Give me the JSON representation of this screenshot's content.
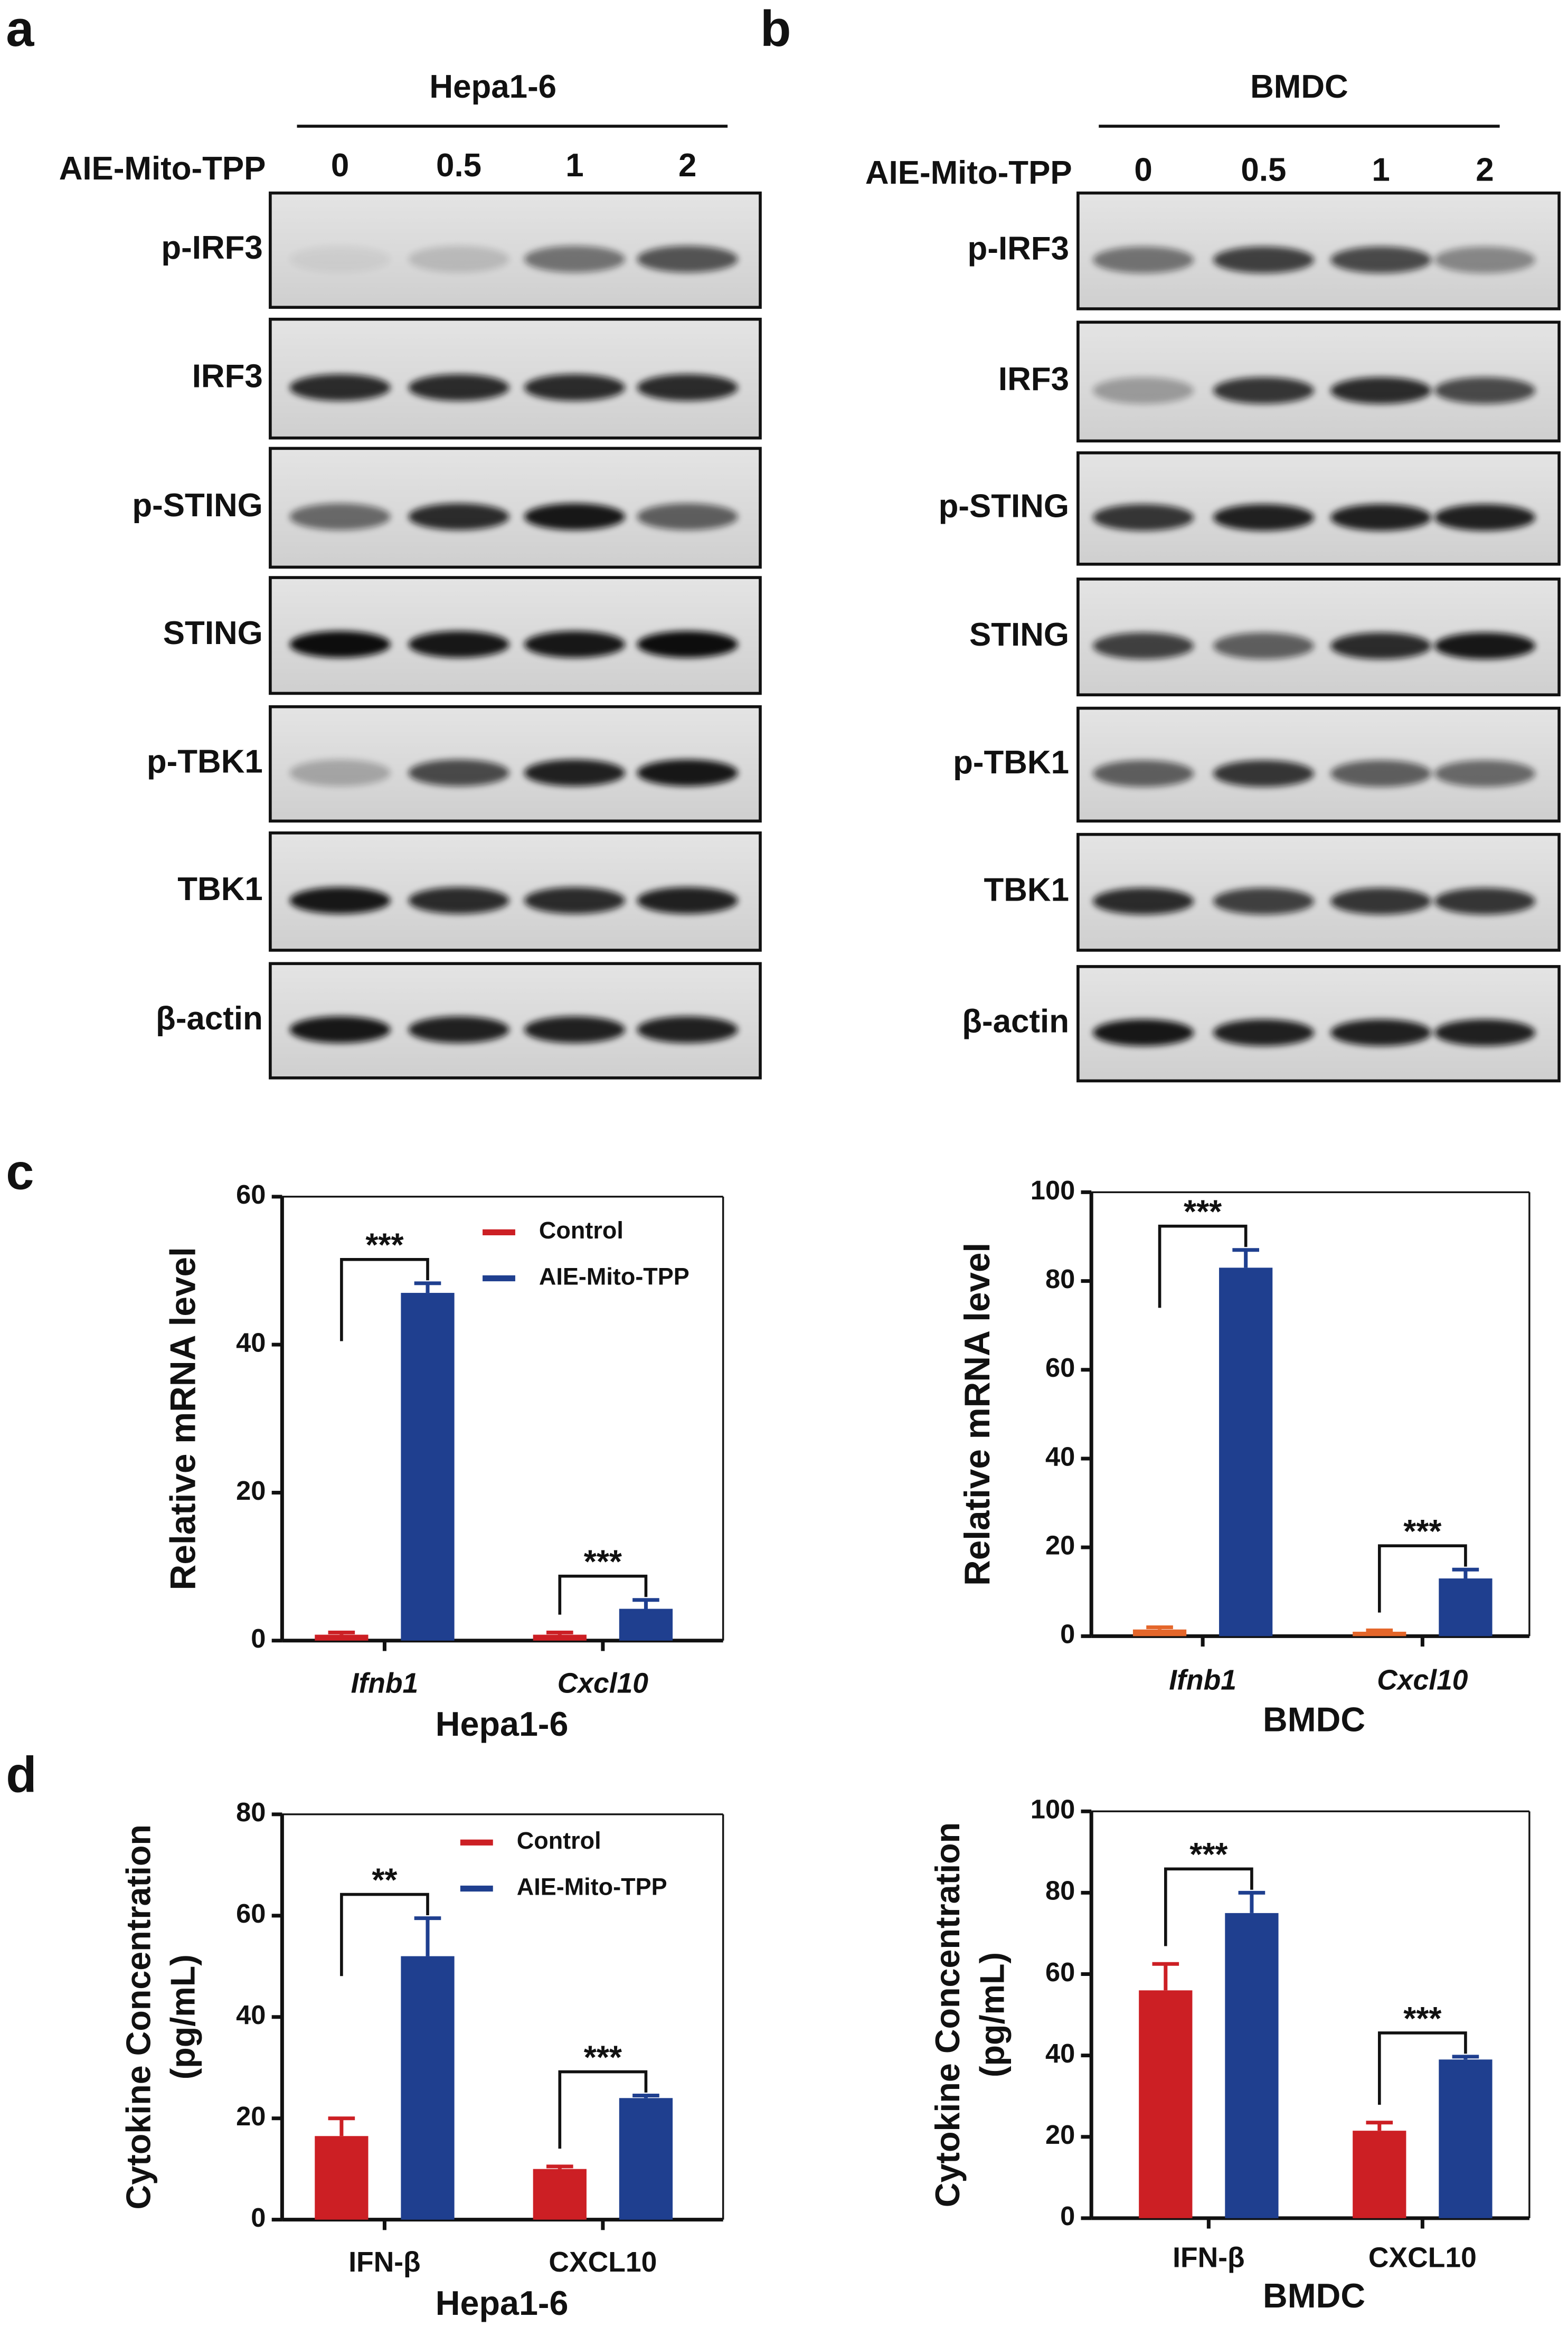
{
  "panel_labels": [
    "a",
    "b",
    "c",
    "d"
  ],
  "blots": [
    {
      "cell_line": "Hepa1-6",
      "treatment": "AIE-Mito-TPP",
      "doses": [
        "0",
        "0.5",
        "1",
        "2"
      ],
      "proteins": [
        "p-IRF3",
        "IRF3",
        "p-STING",
        "STING",
        "p-TBK1",
        "TBK1",
        "β-actin"
      ]
    },
    {
      "cell_line": "BMDC",
      "treatment": "AIE-Mito-TPP",
      "doses": [
        "0",
        "0.5",
        "1",
        "2"
      ],
      "proteins": [
        "p-IRF3",
        "IRF3",
        "p-STING",
        "STING",
        "p-TBK1",
        "TBK1",
        "β-actin"
      ]
    }
  ],
  "chart_data": [
    {
      "type": "bar",
      "ylabel": "Relative mRNA level",
      "xlabel": "Hepa1-6",
      "categories": [
        "Ifnb1",
        "Cxcl10"
      ],
      "series": [
        {
          "name": "Control",
          "color": "#cc1f24",
          "values": [
            0.8,
            0.8
          ],
          "errors": [
            0.3,
            0.3
          ]
        },
        {
          "name": "AIE-Mito-TPP",
          "color": "#1f3f8f",
          "values": [
            47,
            4.3
          ],
          "errors": [
            1.3,
            1.2
          ]
        }
      ],
      "ylim": [
        0,
        60
      ],
      "yticks": [
        0,
        20,
        40,
        60
      ],
      "annotations": [
        "***",
        "***"
      ],
      "legend": true,
      "italic_categories": true
    },
    {
      "type": "bar",
      "ylabel": "Relative mRNA level",
      "xlabel": "BMDC",
      "categories": [
        "Ifnb1",
        "Cxcl10"
      ],
      "series": [
        {
          "color": "#e4662a",
          "values": [
            1.5,
            1.0
          ],
          "errors": [
            0.5,
            0.3
          ]
        },
        {
          "color": "#1f3f8f",
          "values": [
            83,
            13
          ],
          "errors": [
            4,
            2
          ]
        }
      ],
      "ylim": [
        0,
        100
      ],
      "yticks": [
        0,
        20,
        40,
        60,
        80,
        100
      ],
      "annotations": [
        "***",
        "***"
      ],
      "legend": false,
      "italic_categories": true
    },
    {
      "type": "bar",
      "ylabel": [
        "Cytokine Concentration",
        "(pg/mL)"
      ],
      "xlabel": "Hepa1-6",
      "categories": [
        "IFN-β",
        "CXCL10"
      ],
      "series": [
        {
          "name": "Control",
          "color": "#cc1f24",
          "values": [
            16.5,
            10
          ],
          "errors": [
            3.5,
            0.5
          ]
        },
        {
          "name": "AIE-Mito-TPP",
          "color": "#1f3f8f",
          "values": [
            52,
            24
          ],
          "errors": [
            7.5,
            0.5
          ]
        }
      ],
      "ylim": [
        0,
        80
      ],
      "yticks": [
        0,
        20,
        40,
        60,
        80
      ],
      "annotations": [
        "**",
        "***"
      ],
      "legend": true,
      "italic_categories": false
    },
    {
      "type": "bar",
      "ylabel": [
        "Cytokine Concentration",
        "(pg/mL)"
      ],
      "xlabel": "BMDC",
      "categories": [
        "IFN-β",
        "CXCL10"
      ],
      "series": [
        {
          "color": "#cc1f24",
          "values": [
            56,
            21.5
          ],
          "errors": [
            6.5,
            2
          ]
        },
        {
          "color": "#1f3f8f",
          "values": [
            75,
            39
          ],
          "errors": [
            5,
            0.7
          ]
        }
      ],
      "ylim": [
        0,
        100
      ],
      "yticks": [
        0,
        20,
        40,
        60,
        80,
        100
      ],
      "annotations": [
        "***",
        "***"
      ],
      "legend": false,
      "italic_categories": false
    }
  ]
}
